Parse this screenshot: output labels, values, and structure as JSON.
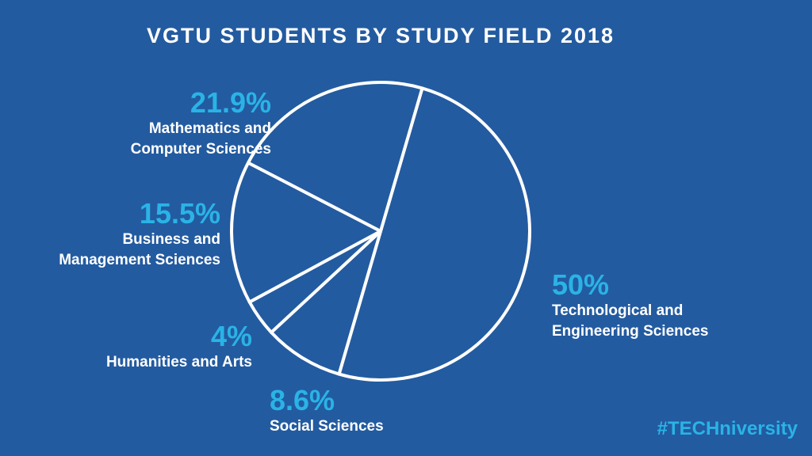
{
  "title": "VGTU STUDENTS BY STUDY FIELD 2018",
  "hashtag": "#TECHniversity",
  "colors": {
    "background": "#235ba0",
    "accent": "#2ab3e6",
    "text": "#ffffff"
  },
  "chart_data": {
    "type": "pie",
    "title": "VGTU STUDENTS BY STUDY FIELD 2018",
    "slices": [
      {
        "label": "Technological and Engineering Sciences",
        "percent_label": "50%",
        "value": 50
      },
      {
        "label": "Social Sciences",
        "percent_label": "8.6%",
        "value": 8.6
      },
      {
        "label": "Humanities and Arts",
        "percent_label": "4%",
        "value": 4
      },
      {
        "label": "Business and Management Sciences",
        "percent_label": "15.5%",
        "value": 15.5
      },
      {
        "label": "Mathematics and Computer Sciences",
        "percent_label": "21.9%",
        "value": 21.9
      }
    ]
  },
  "labels": {
    "math": {
      "pct": "21.9%",
      "name": "Mathematics and\nComputer Sciences"
    },
    "business": {
      "pct": "15.5%",
      "name": "Business and\nManagement Sciences"
    },
    "humanities": {
      "pct": "4%",
      "name": "Humanities and Arts"
    },
    "social": {
      "pct": "8.6%",
      "name": "Social Sciences"
    },
    "tech": {
      "pct": "50%",
      "name": "Technological and\nEngineering Sciences"
    }
  }
}
